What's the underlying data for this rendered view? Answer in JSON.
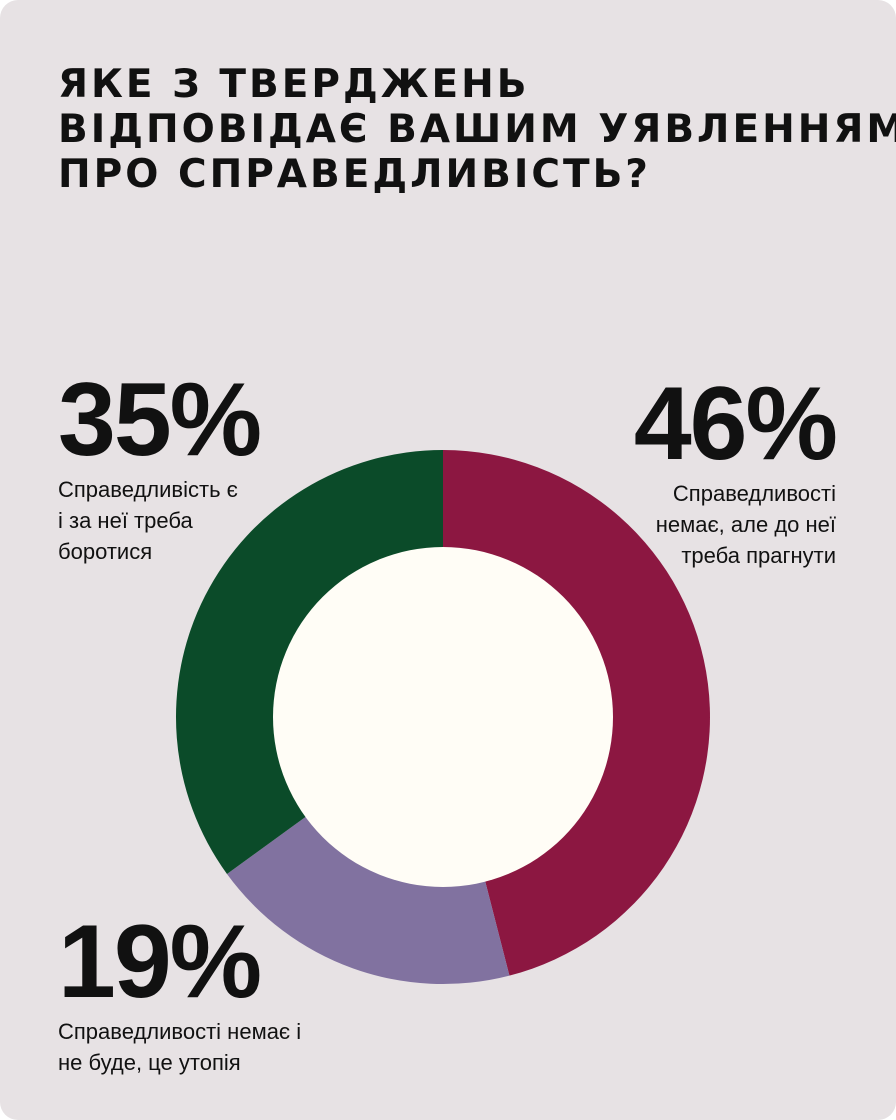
{
  "colors": {
    "background": "#e7e2e4",
    "center": "#fffdf6",
    "text": "#111111"
  },
  "chart_data": {
    "type": "pie",
    "title_lines": [
      "Яке з тверджень",
      "відповідає вашим уявленням",
      "про справедливість?"
    ],
    "categories": [
      "Справедливості немає, але до неї треба прагнути",
      "Справедливості немає і не буде, це утопія",
      "Справедливість є і за неї треба боротися"
    ],
    "values": [
      46,
      19,
      35
    ],
    "unit": "%",
    "slice_colors": [
      "#8c1741",
      "#8172a0",
      "#0b4b29"
    ],
    "labels": [
      {
        "pct": "46%",
        "desc_lines": [
          "Справедливості",
          "немає, але до неї",
          "треба прагнути"
        ]
      },
      {
        "pct": "19%",
        "desc_lines": [
          "Справедливості немає і",
          "не буде, це утопія"
        ]
      },
      {
        "pct": "35%",
        "desc_lines": [
          "Справедливість є",
          "і за неї треба",
          "боротися"
        ]
      }
    ],
    "legend": "none"
  }
}
